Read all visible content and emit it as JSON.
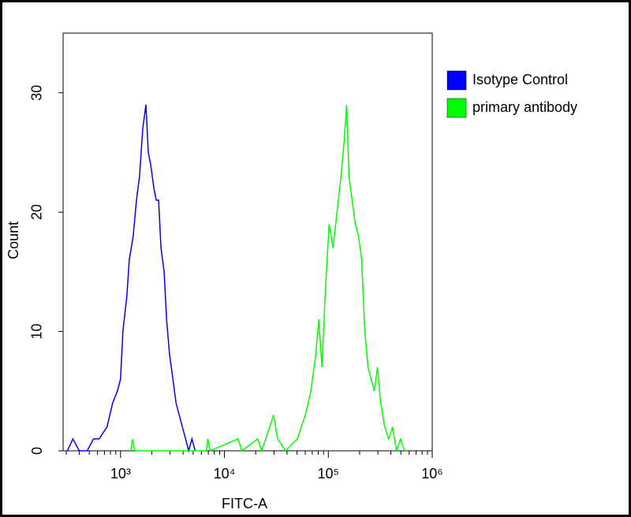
{
  "chart_data": {
    "type": "line",
    "xlabel": "FITC-A",
    "ylabel": "Count",
    "xscale": "log",
    "xlim": [
      280,
      1000000
    ],
    "ylim": [
      0,
      35
    ],
    "xticks": [
      {
        "value": 1000,
        "label": "10³"
      },
      {
        "value": 10000,
        "label": "10⁴"
      },
      {
        "value": 100000,
        "label": "10⁵"
      },
      {
        "value": 1000000,
        "label": "10⁶"
      }
    ],
    "xminorticks": [
      300,
      400,
      500,
      600,
      700,
      800,
      900,
      2000,
      3000,
      4000,
      5000,
      6000,
      7000,
      8000,
      9000,
      20000,
      30000,
      40000,
      50000,
      60000,
      70000,
      80000,
      90000,
      200000,
      300000,
      400000,
      500000,
      600000,
      700000,
      800000,
      900000
    ],
    "yticks": [
      0,
      10,
      20,
      30
    ],
    "grid": false,
    "legend": "right",
    "series": [
      {
        "name": "Isotype Control",
        "color": "#0000ff",
        "x": [
          308,
          348,
          401,
          478,
          550,
          622,
          741,
          839,
          932,
          1000,
          1054,
          1151,
          1213,
          1325,
          1422,
          1524,
          1636,
          1754,
          1849,
          1950,
          2094,
          2206,
          2324,
          2449,
          2630,
          2773,
          2972,
          3190,
          3420,
          3672,
          3936,
          4227,
          4529,
          4864,
          5224
        ],
        "values": [
          0,
          1,
          0,
          0,
          1,
          1,
          2,
          4,
          5,
          6,
          10,
          13,
          16,
          18,
          21,
          23,
          27,
          29,
          25,
          24,
          22,
          21,
          21,
          17,
          15,
          11,
          8,
          6,
          4,
          3,
          2,
          1,
          0,
          1,
          0
        ]
      },
      {
        "name": "primary antibody",
        "color": "#00ff00",
        "x": [
          1257,
          1302,
          1372,
          6668,
          6918,
          7295,
          13490,
          14720,
          20930,
          22850,
          27230,
          29720,
          32450,
          38730,
          50350,
          60090,
          67920,
          75510,
          80940,
          86880,
          93130,
          101800,
          111200,
          121300,
          132400,
          142200,
          150000,
          157800,
          169300,
          182000,
          195000,
          209400,
          224400,
          241000,
          258200,
          277300,
          297200,
          319100,
          348300,
          380200,
          415000,
          452900,
          495500,
          540800
        ],
        "values": [
          0,
          1,
          0,
          0,
          1,
          0,
          1,
          0,
          1,
          0,
          2,
          3,
          1,
          0,
          1,
          3,
          5,
          8,
          11,
          7,
          13,
          19,
          17,
          20,
          23,
          26,
          29,
          23,
          21,
          19,
          18,
          16,
          10,
          7,
          6,
          5,
          7,
          4,
          2,
          1,
          2,
          0,
          1,
          0
        ]
      }
    ]
  }
}
